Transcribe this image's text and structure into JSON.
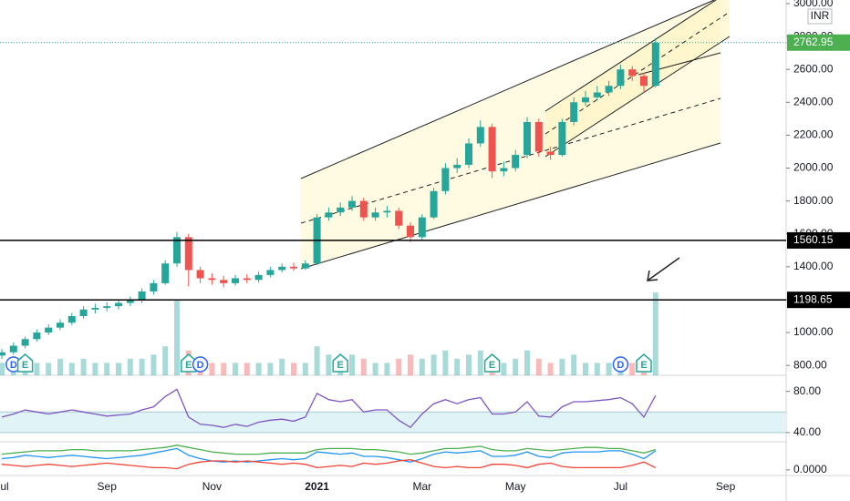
{
  "chart_data": [
    {
      "type": "candlestick",
      "currency": "INR",
      "categories": [
        "Jul",
        null,
        null,
        null,
        null,
        null,
        null,
        null,
        null,
        "Sep",
        null,
        null,
        null,
        null,
        null,
        null,
        null,
        null,
        "Nov",
        null,
        null,
        null,
        null,
        null,
        null,
        null,
        null,
        "2021",
        null,
        null,
        null,
        null,
        null,
        null,
        null,
        null,
        "Mar",
        null,
        null,
        null,
        null,
        null,
        null,
        null,
        "May",
        null,
        null,
        null,
        null,
        null,
        null,
        null,
        null,
        "Jul",
        null,
        null,
        null,
        null,
        null,
        null,
        null,
        null,
        "Sep"
      ],
      "open": [
        860,
        880,
        920,
        960,
        1000,
        1030,
        1060,
        1100,
        1140,
        1150,
        1160,
        1180,
        1200,
        1250,
        1300,
        1420,
        1580,
        1380,
        1330,
        1320,
        1300,
        1330,
        1320,
        1350,
        1380,
        1400,
        1390,
        1420,
        1700,
        1730,
        1760,
        1800,
        1700,
        1730,
        1740,
        1650,
        1580,
        1700,
        1860,
        2000,
        2020,
        2150,
        2250,
        1980,
        2000,
        2080,
        2280,
        2100,
        2080,
        2280,
        2400,
        2430,
        2460,
        2500,
        2600,
        2560,
        2500,
        null,
        null,
        null,
        null,
        null,
        null
      ],
      "high": [
        900,
        940,
        975,
        1020,
        1050,
        1080,
        1120,
        1160,
        1175,
        1185,
        1200,
        1220,
        1270,
        1320,
        1440,
        1610,
        1600,
        1400,
        1360,
        1345,
        1350,
        1355,
        1370,
        1400,
        1420,
        1425,
        1440,
        1720,
        1760,
        1790,
        1830,
        1820,
        1760,
        1770,
        1760,
        1670,
        1720,
        1880,
        2030,
        2060,
        2180,
        2290,
        2270,
        2040,
        2110,
        2310,
        2300,
        2130,
        2300,
        2430,
        2470,
        2500,
        2530,
        2630,
        2620,
        2580,
        2790,
        null,
        null,
        null,
        null,
        null,
        null
      ],
      "low": [
        840,
        865,
        905,
        945,
        985,
        1015,
        1045,
        1085,
        1115,
        1130,
        1140,
        1160,
        1180,
        1230,
        1290,
        1400,
        1280,
        1300,
        1290,
        1275,
        1285,
        1300,
        1305,
        1335,
        1365,
        1375,
        1380,
        1410,
        1680,
        1710,
        1740,
        1680,
        1680,
        1700,
        1630,
        1550,
        1560,
        1690,
        1840,
        1970,
        2000,
        2130,
        1940,
        1950,
        1980,
        2060,
        2070,
        2050,
        2070,
        2260,
        2380,
        2410,
        2440,
        2480,
        2530,
        2460,
        2490,
        null,
        null,
        null,
        null,
        null,
        null
      ],
      "close": [
        880,
        920,
        960,
        1000,
        1030,
        1060,
        1100,
        1140,
        1150,
        1160,
        1180,
        1200,
        1250,
        1300,
        1420,
        1580,
        1380,
        1330,
        1320,
        1300,
        1330,
        1320,
        1350,
        1380,
        1400,
        1390,
        1420,
        1700,
        1730,
        1760,
        1800,
        1700,
        1730,
        1740,
        1650,
        1580,
        1700,
        1860,
        2000,
        2020,
        2150,
        2250,
        1980,
        2000,
        2080,
        2280,
        2100,
        2080,
        2280,
        2400,
        2430,
        2460,
        2500,
        2600,
        2560,
        2500,
        2762.95,
        null,
        null,
        null,
        null,
        null,
        null
      ],
      "volume": [
        3,
        3,
        4,
        3,
        3,
        4,
        3,
        4,
        3,
        3,
        3,
        4,
        4,
        5,
        7,
        18,
        6,
        4,
        3,
        3,
        3,
        3,
        3,
        3,
        4,
        3,
        3,
        7,
        5,
        4,
        5,
        4,
        3,
        3,
        4,
        5,
        4,
        5,
        6,
        4,
        5,
        6,
        5,
        3,
        4,
        6,
        4,
        3,
        4,
        5,
        3,
        3,
        3,
        4,
        3,
        4,
        20,
        null,
        null,
        null,
        null,
        null,
        null
      ],
      "volume_ylim": [
        0,
        22
      ],
      "up_color": "#26a69a",
      "down_color": "#ef5350",
      "ylim": [
        740,
        3022
      ],
      "yticks": [
        {
          "value": 800,
          "label": "800.00"
        },
        {
          "value": 1000,
          "label": "1000.00"
        },
        {
          "value": 1200,
          "label": "1200.00"
        },
        {
          "value": 1400,
          "label": "1400.00"
        },
        {
          "value": 1600,
          "label": "1600.00"
        },
        {
          "value": 1800,
          "label": "1800.00"
        },
        {
          "value": 2000,
          "label": "2000.00"
        },
        {
          "value": 2200,
          "label": "2200.00"
        },
        {
          "value": 2400,
          "label": "2400.00"
        },
        {
          "value": 2600,
          "label": "2600.00"
        },
        {
          "value": 2800,
          "label": "2800.00"
        },
        {
          "value": 3000,
          "label": "3000.00"
        }
      ],
      "levels": [
        1560.15,
        1198.65
      ],
      "events": [
        {
          "label": "D",
          "index": 1
        },
        {
          "label": "E",
          "index": 2
        },
        {
          "label": "E",
          "index": 16
        },
        {
          "label": "D",
          "index": 17
        },
        {
          "label": "E",
          "index": 29
        },
        {
          "label": "E",
          "index": 42
        },
        {
          "label": "D",
          "index": 53
        },
        {
          "label": "E",
          "index": 55
        }
      ]
    },
    {
      "type": "line",
      "ylim": [
        31,
        93
      ],
      "band": [
        40,
        60
      ],
      "yticks": [
        {
          "value": 40,
          "label": "40.00"
        },
        {
          "value": 80,
          "label": "80.00"
        }
      ],
      "series": [
        {
          "color": "#7e57c2",
          "values": [
            55,
            58,
            62,
            60,
            58,
            60,
            62,
            60,
            58,
            56,
            57,
            58,
            62,
            65,
            75,
            82,
            55,
            48,
            47,
            45,
            48,
            46,
            50,
            52,
            53,
            51,
            55,
            78,
            72,
            70,
            72,
            60,
            62,
            62,
            52,
            45,
            58,
            68,
            72,
            68,
            72,
            74,
            58,
            58,
            60,
            70,
            56,
            55,
            65,
            70,
            70,
            71,
            72,
            74,
            68,
            55,
            76,
            null,
            null,
            null,
            null,
            null,
            null
          ]
        }
      ]
    },
    {
      "type": "line",
      "ylim": [
        -0.05,
        0.25
      ],
      "yticks": [
        {
          "value": 0,
          "label": "0.0000"
        }
      ],
      "series": [
        {
          "color": "#4caf50",
          "values": [
            0.14,
            0.15,
            0.16,
            0.17,
            0.17,
            0.17,
            0.18,
            0.18,
            0.17,
            0.17,
            0.17,
            0.17,
            0.18,
            0.19,
            0.2,
            0.22,
            0.2,
            0.18,
            0.16,
            0.15,
            0.14,
            0.14,
            0.14,
            0.15,
            0.15,
            0.15,
            0.15,
            0.18,
            0.19,
            0.19,
            0.19,
            0.18,
            0.18,
            0.17,
            0.16,
            0.14,
            0.15,
            0.17,
            0.19,
            0.19,
            0.2,
            0.21,
            0.18,
            0.17,
            0.17,
            0.19,
            0.18,
            0.17,
            0.18,
            0.19,
            0.2,
            0.2,
            0.19,
            0.19,
            0.17,
            0.15,
            0.18,
            null,
            null,
            null,
            null,
            null,
            null
          ]
        },
        {
          "color": "#2196f3",
          "values": [
            0.1,
            0.11,
            0.13,
            0.12,
            0.11,
            0.12,
            0.13,
            0.12,
            0.11,
            0.1,
            0.11,
            0.12,
            0.13,
            0.15,
            0.17,
            0.19,
            0.13,
            0.1,
            0.08,
            0.07,
            0.08,
            0.07,
            0.08,
            0.09,
            0.1,
            0.09,
            0.1,
            0.16,
            0.15,
            0.14,
            0.15,
            0.12,
            0.12,
            0.11,
            0.09,
            0.07,
            0.1,
            0.14,
            0.16,
            0.15,
            0.16,
            0.17,
            0.12,
            0.12,
            0.13,
            0.16,
            0.12,
            0.11,
            0.15,
            0.16,
            0.16,
            0.16,
            0.17,
            0.17,
            0.14,
            0.1,
            0.17,
            null,
            null,
            null,
            null,
            null,
            null
          ]
        },
        {
          "color": "#f44336",
          "values": [
            0.05,
            0.04,
            0.03,
            0.04,
            0.05,
            0.04,
            0.03,
            0.04,
            0.05,
            0.06,
            0.05,
            0.04,
            0.03,
            0.02,
            0.02,
            0.01,
            0.05,
            0.07,
            0.08,
            0.08,
            0.07,
            0.08,
            0.07,
            0.06,
            0.05,
            0.06,
            0.05,
            0.02,
            0.03,
            0.04,
            0.03,
            0.06,
            0.05,
            0.06,
            0.08,
            0.09,
            0.06,
            0.03,
            0.02,
            0.03,
            0.02,
            0.02,
            0.05,
            0.05,
            0.04,
            0.02,
            0.05,
            0.06,
            0.03,
            0.02,
            0.02,
            0.02,
            0.02,
            0.02,
            0.04,
            0.07,
            0.02,
            null,
            null,
            null,
            null,
            null,
            null
          ]
        }
      ]
    }
  ]
}
